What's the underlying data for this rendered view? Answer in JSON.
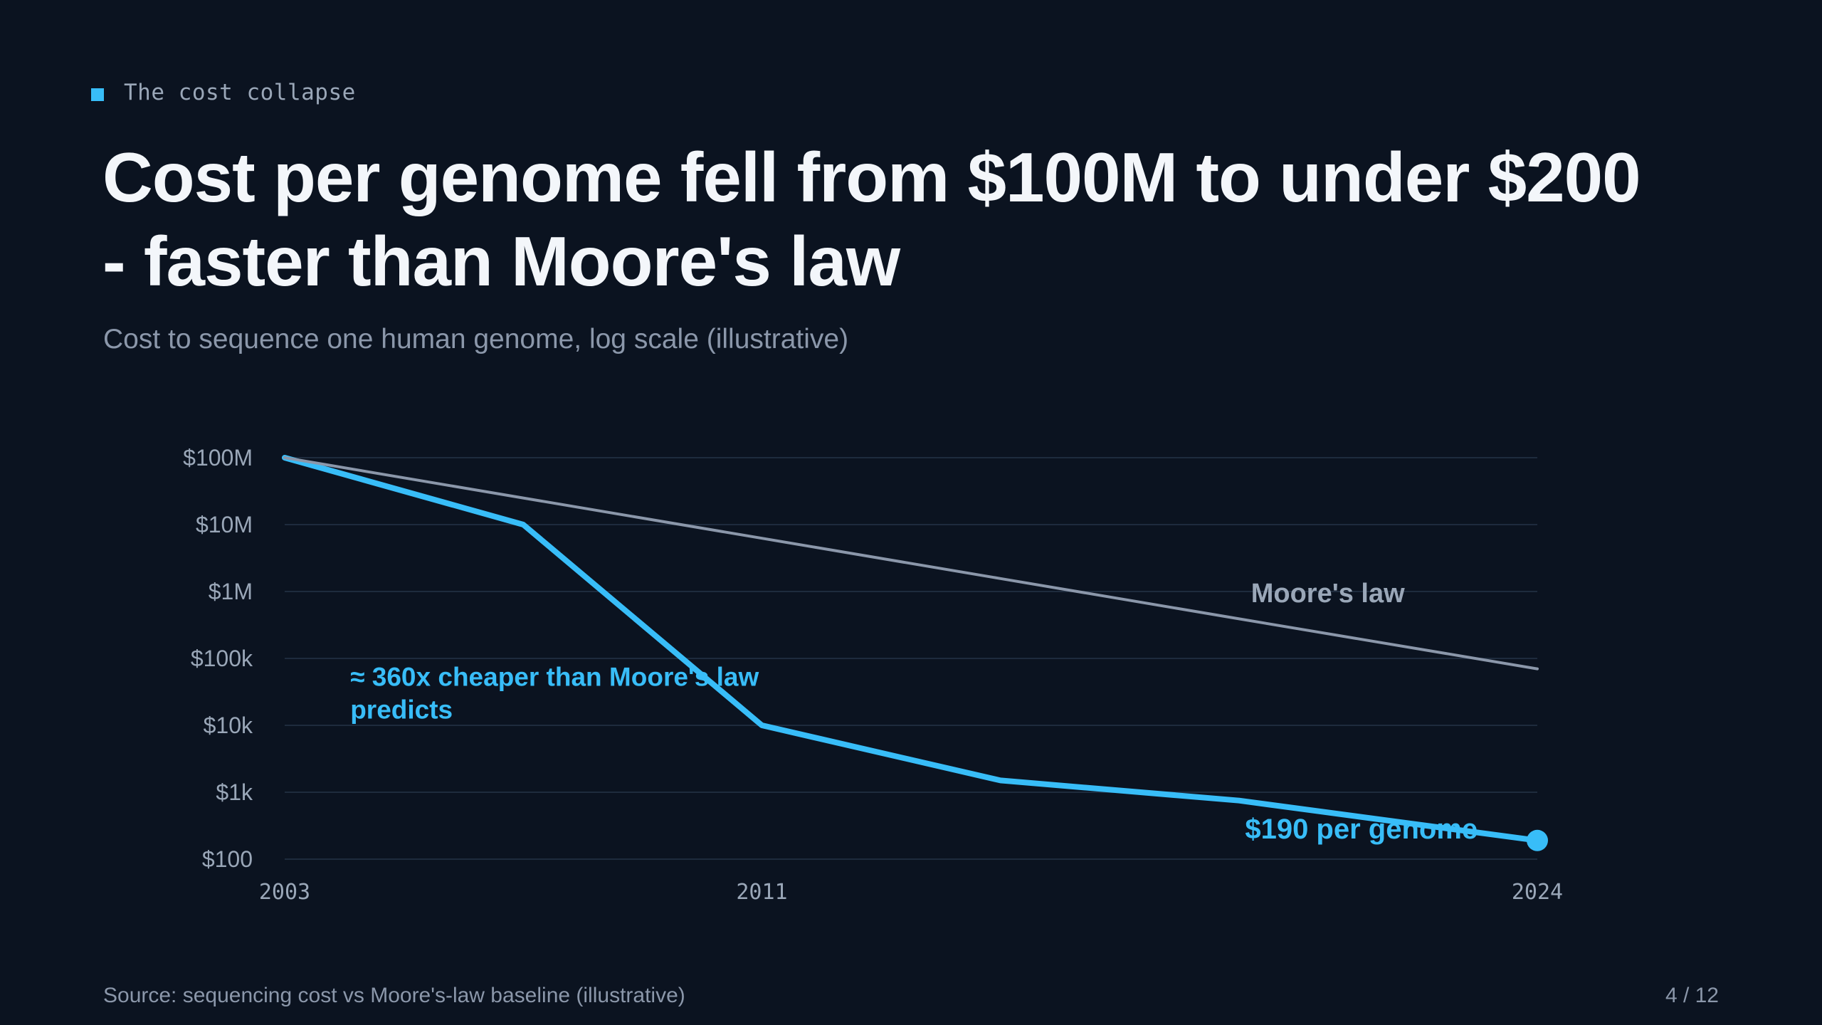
{
  "eyebrow": "The cost collapse",
  "title": "Cost per genome fell from $100M to under $200 - faster than Moore's law",
  "subtitle": "Cost to sequence one human genome, log scale (illustrative)",
  "footer": {
    "source": "Source: sequencing cost vs Moore's-law baseline (illustrative)",
    "page": "4 / 12"
  },
  "colors": {
    "background": "#0b1320",
    "accent": "#38bdf8",
    "moore_line": "#8b97aa",
    "grid": "#1e2b3d",
    "muted_text": "#9aa7b8"
  },
  "chart_data": {
    "type": "line",
    "y_scale": "log",
    "ylim": [
      100,
      100000000
    ],
    "xlim": [
      2003,
      2024
    ],
    "y_ticks": [
      {
        "value": 100000000,
        "label": "$100M"
      },
      {
        "value": 10000000,
        "label": "$10M"
      },
      {
        "value": 1000000,
        "label": "$1M"
      },
      {
        "value": 100000,
        "label": "$100k"
      },
      {
        "value": 10000,
        "label": "$10k"
      },
      {
        "value": 1000,
        "label": "$1k"
      },
      {
        "value": 100,
        "label": "$100"
      }
    ],
    "x_ticks": [
      {
        "value": 2003,
        "label": "2003"
      },
      {
        "value": 2011,
        "label": "2011"
      },
      {
        "value": 2024,
        "label": "2024"
      }
    ],
    "grid": true,
    "series": [
      {
        "name": "",
        "role": "sequencing-cost",
        "x": [
          2003,
          2007,
          2011,
          2015,
          2019,
          2024
        ],
        "y": [
          100000000,
          10000000,
          10000,
          1500,
          750,
          190
        ],
        "end_marker": true
      },
      {
        "name": "Moore's law",
        "role": "moores-law",
        "x": [
          2003,
          2007,
          2011,
          2015,
          2019,
          2024
        ],
        "y": [
          100000000,
          25000000,
          6250000,
          1560000,
          390000,
          70000
        ]
      }
    ],
    "annotations": [
      {
        "text": "≈ 360x cheaper than Moore's law predicts",
        "lines": [
          "≈ 360x cheaper than Moore's law",
          "predicts"
        ],
        "x": 2004.1,
        "y": 52000
      },
      {
        "text": "$190 per genome",
        "x": 2019.1,
        "y": 280
      },
      {
        "text": "Moore's law",
        "x": 2019.2,
        "y": 950000
      }
    ]
  }
}
